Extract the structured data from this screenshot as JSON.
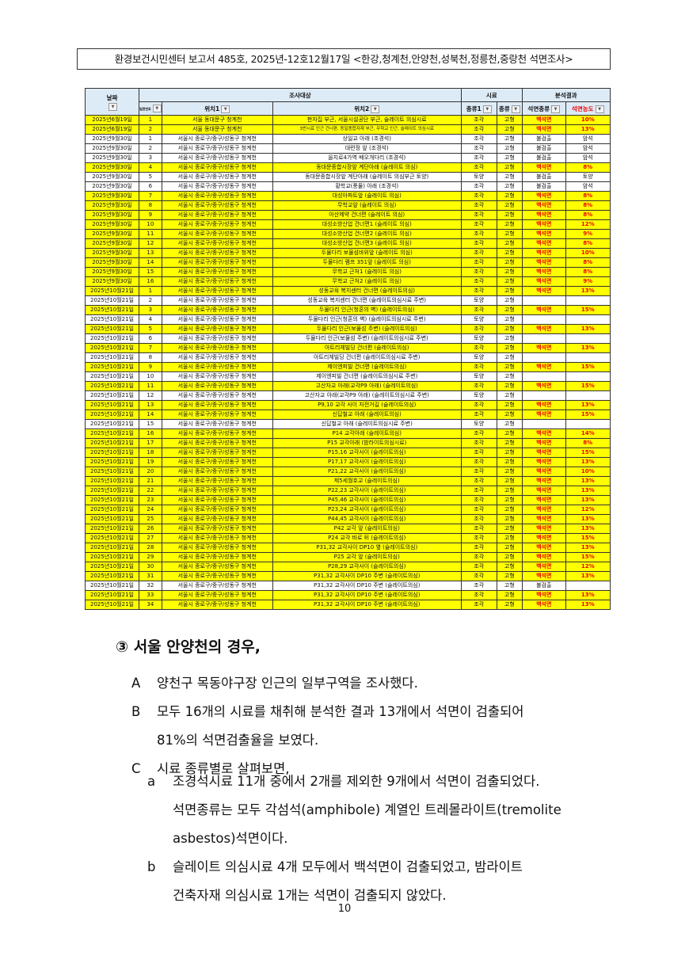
{
  "header": "환경보건시민센터 보고서 485호, 2025년-12호12월17일 <한강,청계천,안양천,성북천,정릉천,중랑천 석면조사>",
  "table": {
    "group_headers": {
      "date": "날짜",
      "survey": "조사대상",
      "sample": "시료",
      "result": "분석결과"
    },
    "columns": [
      "일련번호",
      "위치1",
      "위치2",
      "종류1",
      "종류",
      "석면종류",
      "석면농도"
    ],
    "rows": [
      [
        "2025년6월19일",
        "1",
        "서울 동대문구 청계천",
        "판자집 부근, 서울시설공단 부근, 슬레이트 의심시료",
        "조각",
        "고형",
        "백석면",
        "10%"
      ],
      [
        "2025년6월19일",
        "2",
        "서울 동대문구 청계천",
        "3번시료 인근 건너편, 동일종합자재 부근, 무학교 인근, 슬레이트 의심시료",
        "조각",
        "고형",
        "백석면",
        "13%"
      ],
      [
        "2025년9월30일",
        "1",
        "서울시 종로구/중구/성동구 청계천",
        "상일교 아래 (조경석)",
        "조각",
        "고형",
        "불검출",
        "암석"
      ],
      [
        "2025년9월30일",
        "2",
        "서울시 종로구/중구/성동구 청계천",
        "대련정 앞 (조경석)",
        "조각",
        "고형",
        "불검출",
        "암석"
      ],
      [
        "2025년9월30일",
        "3",
        "서울시 종로구/중구/성동구 청계천",
        "을지로4가역 배오개다리 (조경석)",
        "조각",
        "고형",
        "불검출",
        "암석"
      ],
      [
        "2025년9월30일",
        "4",
        "서울시 종로구/중구/성동구 청계천",
        "동대문종합시장앞 계단아래 (슬레이트 의심)",
        "조각",
        "고형",
        "백석면",
        "8%"
      ],
      [
        "2025년9월30일",
        "5",
        "서울시 종로구/중구/성동구 청계천",
        "동대문종합시장앞 계단아래 (슬레이트 의심부근 토양)",
        "토양",
        "고형",
        "불검출",
        "토양"
      ],
      [
        "2025년9월30일",
        "6",
        "서울시 종로구/중구/성동구 청계천",
        "황학교(풍물) 아래 (조경석)",
        "조각",
        "고형",
        "불검출",
        "암석"
      ],
      [
        "2025년9월30일",
        "7",
        "서울시 종로구/중구/성동구 청계천",
        "대성아파트앞 (슬레이트 의심)",
        "조각",
        "고형",
        "백석면",
        "8%"
      ],
      [
        "2025년9월30일",
        "8",
        "서울시 종로구/중구/성동구 청계천",
        "무학교앞 (슬레이트 의심)",
        "조각",
        "고형",
        "백석면",
        "8%"
      ],
      [
        "2025년9월30일",
        "9",
        "서울시 종로구/중구/성동구 청계천",
        "아산제약 건너편 (슬레이트 의심)",
        "조각",
        "고형",
        "백석면",
        "8%"
      ],
      [
        "2025년9월30일",
        "10",
        "서울시 종로구/중구/성동구 청계천",
        "대성소방산업 건너편1 (슬레이트 의심)",
        "조각",
        "고형",
        "백석면",
        "12%"
      ],
      [
        "2025년9월30일",
        "11",
        "서울시 종로구/중구/성동구 청계천",
        "대성소방산업 건너편2 (슬레이트 의심)",
        "조각",
        "고형",
        "백석면",
        "9%"
      ],
      [
        "2025년9월30일",
        "12",
        "서울시 종로구/중구/성동구 청계천",
        "대성소방산업 건너편3 (슬레이트 의심)",
        "조각",
        "고형",
        "백석면",
        "8%"
      ],
      [
        "2025년9월30일",
        "13",
        "서울시 종로구/중구/성동구 청계천",
        "두물다리 보물섬바위앞 (슬레이트 의심)",
        "조각",
        "고형",
        "백석면",
        "10%"
      ],
      [
        "2025년9월30일",
        "14",
        "서울시 종로구/중구/성동구 청계천",
        "두물다리 램프 351앞 (슬레이트 의심)",
        "조각",
        "고형",
        "백석면",
        "8%"
      ],
      [
        "2025년9월30일",
        "15",
        "서울시 종로구/중구/성동구 청계천",
        "무학교 근처1 (슬레이트 의심)",
        "조각",
        "고형",
        "백석면",
        "8%"
      ],
      [
        "2025년9월30일",
        "16",
        "서울시 종로구/중구/성동구 청계천",
        "무학교 근처2 (슬레이트 의심)",
        "조각",
        "고형",
        "백석면",
        "9%"
      ],
      [
        "2025년10월21일",
        "1",
        "서울시 종로구/중구/성동구 청계천",
        "성동교육 복지센터 건너편 (슬레이트의심)",
        "조각",
        "고형",
        "백석면",
        "13%"
      ],
      [
        "2025년10월21일",
        "2",
        "서울시 종로구/중구/성동구 청계천",
        "성동교육 복지센터 건너편 (슬레이트의심시료 주변)",
        "토양",
        "고형",
        "",
        ""
      ],
      [
        "2025년10월21일",
        "3",
        "서울시 종로구/중구/성동구 청계천",
        "두물다리 인근(청혼의 벽) (슬레이트의심)",
        "조각",
        "고형",
        "백석면",
        "15%"
      ],
      [
        "2025년10월21일",
        "4",
        "서울시 종로구/중구/성동구 청계천",
        "두물다리 인근(청혼의 벽) (슬레이트의심시료 주변)",
        "토양",
        "고형",
        "",
        ""
      ],
      [
        "2025년10월21일",
        "5",
        "서울시 종로구/중구/성동구 청계천",
        "두물다리 인근(보물섬 주변) (슬레이트의심)",
        "조각",
        "고형",
        "백석면",
        "13%"
      ],
      [
        "2025년10월21일",
        "6",
        "서울시 종로구/중구/성동구 청계천",
        "두물다리 인근(보물섬 주변) (슬레이트의심시료 주변)",
        "토양",
        "고형",
        "",
        ""
      ],
      [
        "2025년10월21일",
        "7",
        "서울시 종로구/중구/성동구 청계천",
        "아트리체빌딩 건너편 (슬레이트의심)",
        "조각",
        "고형",
        "백석면",
        "13%"
      ],
      [
        "2025년10월21일",
        "8",
        "서울시 종로구/중구/성동구 청계천",
        "아트리체빌딩 건너편 (슬레이트의심시료 주변)",
        "토양",
        "고형",
        "",
        ""
      ],
      [
        "2025년10월21일",
        "9",
        "서울시 종로구/중구/성동구 청계천",
        "제이엔피빌 건너편 (슬레이트의심)",
        "조각",
        "고형",
        "백석면",
        "15%"
      ],
      [
        "2025년10월21일",
        "10",
        "서울시 종로구/중구/성동구 청계천",
        "제이엔피빌 건너편 (슬레이트의심시료 주변)",
        "토양",
        "고형",
        "",
        ""
      ],
      [
        "2025년10월21일",
        "11",
        "서울시 종로구/중구/성동구 청계천",
        "고산자교 아래(교각P9 아래) (슬레이트의심)",
        "조각",
        "고형",
        "백석면",
        "15%"
      ],
      [
        "2025년10월21일",
        "12",
        "서울시 종로구/중구/성동구 청계천",
        "고산자교 아래(교각P9 아래) (슬레이트의심시료 주변)",
        "토양",
        "고형",
        "",
        ""
      ],
      [
        "2025년10월21일",
        "13",
        "서울시 종로구/중구/성동구 청계천",
        "P9,10 교각 사이 자전거길 (슬레이트의심)",
        "조각",
        "고형",
        "백석면",
        "13%"
      ],
      [
        "2025년10월21일",
        "14",
        "서울시 종로구/중구/성동구 청계천",
        "신답철교 아래 (슬레이트의심)",
        "조각",
        "고형",
        "백석면",
        "15%"
      ],
      [
        "2025년10월21일",
        "15",
        "서울시 종로구/중구/성동구 청계천",
        "신답철교 아래 (슬레이트의심시료 주변)",
        "토양",
        "고형",
        "",
        ""
      ],
      [
        "2025년10월21일",
        "16",
        "서울시 종로구/중구/성동구 청계천",
        "P14 교각아래 (슬레이트의심)",
        "조각",
        "고형",
        "백석면",
        "14%"
      ],
      [
        "2025년10월21일",
        "17",
        "서울시 종로구/중구/성동구 청계천",
        "P15 교각아래 (밤라이트의심시료)",
        "조각",
        "고형",
        "백석면",
        "8%"
      ],
      [
        "2025년10월21일",
        "18",
        "서울시 종로구/중구/성동구 청계천",
        "P15,16 교각사이 (슬레이트의심)",
        "조각",
        "고형",
        "백석면",
        "15%"
      ],
      [
        "2025년10월21일",
        "19",
        "서울시 종로구/중구/성동구 청계천",
        "P17,17 교각사이 (슬레이트의심)",
        "조각",
        "고형",
        "백석면",
        "13%"
      ],
      [
        "2025년10월21일",
        "20",
        "서울시 종로구/중구/성동구 청계천",
        "P21,22 교각사이 (슬레이트의심)",
        "조각",
        "고형",
        "백석면",
        "10%"
      ],
      [
        "2025년10월21일",
        "21",
        "서울시 종로구/중구/성동구 청계천",
        "제5세월호교 (슬레이트의심)",
        "조각",
        "고형",
        "백석면",
        "13%"
      ],
      [
        "2025년10월21일",
        "22",
        "서울시 종로구/중구/성동구 청계천",
        "P22,23 교각사이 (슬레이트의심)",
        "조각",
        "고형",
        "백석면",
        "13%"
      ],
      [
        "2025년10월21일",
        "23",
        "서울시 종로구/중구/성동구 청계천",
        "P45,46 교각사이 (슬레이트의심)",
        "조각",
        "고형",
        "백석면",
        "13%"
      ],
      [
        "2025년10월21일",
        "24",
        "서울시 종로구/중구/성동구 청계천",
        "P23,24 교각사이 (슬레이트의심)",
        "조각",
        "고형",
        "백석면",
        "12%"
      ],
      [
        "2025년10월21일",
        "25",
        "서울시 종로구/중구/성동구 청계천",
        "P44,45 교각사이 (슬레이트의심)",
        "조각",
        "고형",
        "백석면",
        "13%"
      ],
      [
        "2025년10월21일",
        "26",
        "서울시 종로구/중구/성동구 청계천",
        "P42 교각 앞 (슬레이트의심)",
        "조각",
        "고형",
        "백석면",
        "13%"
      ],
      [
        "2025년10월21일",
        "27",
        "서울시 종로구/중구/성동구 청계천",
        "P24 교각 바로 뒤 (슬레이트의심)",
        "조각",
        "고형",
        "백석면",
        "15%"
      ],
      [
        "2025년10월21일",
        "28",
        "서울시 종로구/중구/성동구 청계천",
        "P31,32 교각사이 DP10 옆 (슬레이트의심)",
        "조각",
        "고형",
        "백석면",
        "13%"
      ],
      [
        "2025년10월21일",
        "29",
        "서울시 종로구/중구/성동구 청계천",
        "P25 교각 앞 (슬레이트의심)",
        "조각",
        "고형",
        "백석면",
        "15%"
      ],
      [
        "2025년10월21일",
        "30",
        "서울시 종로구/중구/성동구 청계천",
        "P28,29 교각사이 (슬레이트의심)",
        "조각",
        "고형",
        "백석면",
        "12%"
      ],
      [
        "2025년10월21일",
        "31",
        "서울시 종로구/중구/성동구 청계천",
        "P31,32 교각사이 DP10 주변 (슬레이트의심)",
        "조각",
        "고형",
        "백석면",
        "13%"
      ],
      [
        "2025년10월21일",
        "32",
        "서울시 종로구/중구/성동구 청계천",
        "P31,32 교각사이 DP10 주변 (슬레이트의심)",
        "조각",
        "고형",
        "불검출",
        ""
      ],
      [
        "2025년10월21일",
        "33",
        "서울시 종로구/중구/성동구 청계천",
        "P31,32 교각사이 DP10 주변 (슬레이트의심)",
        "조각",
        "고형",
        "백석면",
        "13%"
      ],
      [
        "2025년10월21일",
        "34",
        "서울시 종로구/중구/성동구 청계천",
        "P31,32 교각사이 DP10 주변 (슬레이트의심)",
        "조각",
        "고형",
        "백석면",
        "13%"
      ]
    ],
    "highlight_color": "#ffff00",
    "positive_color": "#ee0000"
  },
  "section": {
    "title": "③ 서울 안양천의 경우,",
    "items": [
      {
        "label": "A",
        "lines": [
          "양천구 목동야구장 인근의 일부구역을 조사했다."
        ]
      },
      {
        "label": "B",
        "lines": [
          "모두 16개의 시료를 채취해 분석한 결과 13개에서 석면이 검출되어",
          "81%의 석면검출율을 보였다."
        ]
      },
      {
        "label": "C",
        "lines": [
          "시료 종류별로 살펴보면,"
        ]
      }
    ],
    "subitems": [
      {
        "label": "a",
        "lines": [
          "조경석시료 11개 중에서 2개를 제외한 9개에서 석면이 검출되었다.",
          "석면종류는 모두 각섬석(amphibole) 계열인 트레몰라이트(tremolite",
          "asbestos)석면이다."
        ]
      },
      {
        "label": "b",
        "lines": [
          "슬레이트 의심시료 4개 모두에서 백석면이 검출되었고, 밤라이트",
          "건축자재 의심시료 1개는 석면이 검출되지 않았다."
        ]
      }
    ]
  },
  "page_number": "10"
}
